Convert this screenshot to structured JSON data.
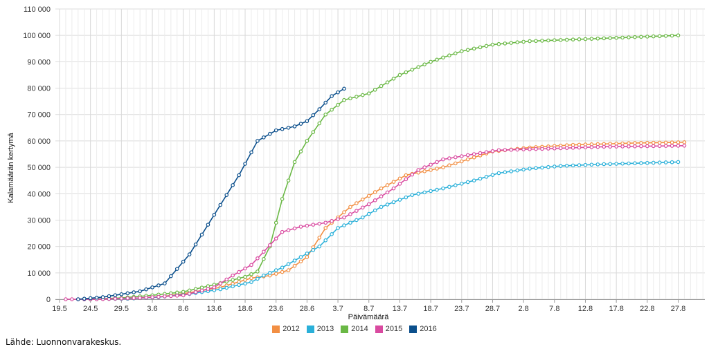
{
  "chart_data": {
    "type": "line",
    "title": "",
    "xlabel": "Päivämäärä",
    "ylabel": "Kalamäärän kertymä",
    "ylim": [
      0,
      110000
    ],
    "x_ticks": [
      "19.5",
      "24.5",
      "29.5",
      "3.6",
      "8.6",
      "13.6",
      "18.6",
      "23.6",
      "28.6",
      "3.7",
      "8.7",
      "13.7",
      "18.7",
      "23.7",
      "28.7",
      "2.8",
      "7.8",
      "12.8",
      "17.8",
      "22.8",
      "27.8"
    ],
    "y_ticks": [
      "0",
      "10 000",
      "20 000",
      "30 000",
      "40 000",
      "50 000",
      "60 000",
      "70 000",
      "80 000",
      "90 000",
      "100 000",
      "110 000"
    ],
    "grid": true,
    "legend_position": "bottom",
    "series": [
      {
        "name": "2012",
        "color": "#f28f43",
        "points": [
          [
            "23.5",
            0
          ],
          [
            "30.5",
            200
          ],
          [
            "4.6",
            800
          ],
          [
            "9.6",
            2500
          ],
          [
            "14.6",
            4500
          ],
          [
            "19.6",
            8000
          ],
          [
            "22.6",
            9000
          ],
          [
            "25.6",
            11000
          ],
          [
            "28.6",
            16000
          ],
          [
            "1.7",
            27000
          ],
          [
            "5.7",
            35000
          ],
          [
            "10.7",
            42000
          ],
          [
            "14.7",
            47000
          ],
          [
            "17.7",
            48500
          ],
          [
            "20.7",
            50000
          ],
          [
            "24.7",
            53000
          ],
          [
            "28.7",
            56000
          ],
          [
            "3.8",
            57500
          ],
          [
            "10.8",
            58500
          ],
          [
            "20.8",
            59200
          ],
          [
            "28.8",
            59500
          ]
        ]
      },
      {
        "name": "2013",
        "color": "#2ab0d9",
        "points": [
          [
            "23.5",
            0
          ],
          [
            "30.5",
            200
          ],
          [
            "4.6",
            800
          ],
          [
            "9.6",
            2000
          ],
          [
            "14.6",
            3800
          ],
          [
            "19.6",
            6500
          ],
          [
            "21.6",
            9000
          ],
          [
            "24.6",
            12000
          ],
          [
            "27.6",
            16000
          ],
          [
            "30.6",
            20000
          ],
          [
            "3.7",
            27000
          ],
          [
            "7.7",
            31000
          ],
          [
            "10.7",
            35000
          ],
          [
            "15.7",
            39500
          ],
          [
            "20.7",
            42000
          ],
          [
            "25.7",
            45000
          ],
          [
            "29.7",
            47800
          ],
          [
            "3.8",
            49500
          ],
          [
            "8.8",
            50500
          ],
          [
            "15.8",
            51200
          ],
          [
            "27.8",
            52000
          ]
        ]
      },
      {
        "name": "2014",
        "color": "#6ab845",
        "points": [
          [
            "24.5",
            0
          ],
          [
            "29.5",
            500
          ],
          [
            "3.6",
            1500
          ],
          [
            "8.6",
            2800
          ],
          [
            "13.6",
            5500
          ],
          [
            "18.6",
            8500
          ],
          [
            "20.6",
            10500
          ],
          [
            "22.6",
            20000
          ],
          [
            "24.6",
            38000
          ],
          [
            "26.6",
            52000
          ],
          [
            "28.6",
            60000
          ],
          [
            "1.7",
            70000
          ],
          [
            "4.7",
            75500
          ],
          [
            "8.7",
            78000
          ],
          [
            "13.7",
            85000
          ],
          [
            "18.7",
            90000
          ],
          [
            "23.7",
            94000
          ],
          [
            "28.7",
            96500
          ],
          [
            "3.8",
            97800
          ],
          [
            "13.8",
            98700
          ],
          [
            "27.8",
            100000
          ]
        ]
      },
      {
        "name": "2015",
        "color": "#d94aa0",
        "points": [
          [
            "20.5",
            0
          ],
          [
            "25.5",
            0
          ],
          [
            "1.6",
            500
          ],
          [
            "8.6",
            1500
          ],
          [
            "13.6",
            4500
          ],
          [
            "16.6",
            9000
          ],
          [
            "19.6",
            13000
          ],
          [
            "21.6",
            18000
          ],
          [
            "24.6",
            25500
          ],
          [
            "27.6",
            27500
          ],
          [
            "1.7",
            29000
          ],
          [
            "4.7",
            31000
          ],
          [
            "8.7",
            36000
          ],
          [
            "12.7",
            42000
          ],
          [
            "16.7",
            49000
          ],
          [
            "20.7",
            53000
          ],
          [
            "25.7",
            55000
          ],
          [
            "29.7",
            56500
          ],
          [
            "5.8",
            57000
          ],
          [
            "15.8",
            57800
          ],
          [
            "28.8",
            58200
          ]
        ]
      },
      {
        "name": "2016",
        "color": "#0b4f8c",
        "points": [
          [
            "22.5",
            0
          ],
          [
            "26.5",
            800
          ],
          [
            "1.6",
            3000
          ],
          [
            "5.6",
            6000
          ],
          [
            "9.6",
            17000
          ],
          [
            "13.6",
            32000
          ],
          [
            "17.6",
            47000
          ],
          [
            "20.6",
            60000
          ],
          [
            "23.6",
            64000
          ],
          [
            "26.6",
            65500
          ],
          [
            "28.6",
            67500
          ],
          [
            "30.6",
            72000
          ],
          [
            "2.7",
            77000
          ],
          [
            "4.7",
            79800
          ]
        ]
      }
    ]
  },
  "legend": {
    "items": [
      "2012",
      "2013",
      "2014",
      "2015",
      "2016"
    ]
  },
  "source": "Lähde: Luonnonvarakeskus."
}
